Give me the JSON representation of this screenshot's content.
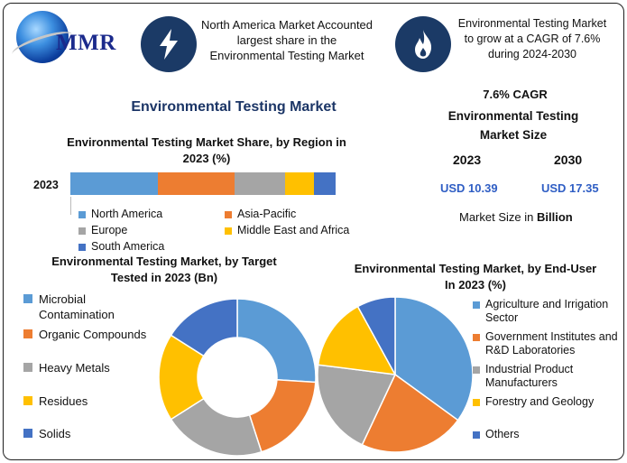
{
  "brand": {
    "name": "MMR"
  },
  "header": {
    "info_left": "North America Market Accounted largest share in the Environmental Testing Market",
    "info_right": "Environmental Testing Market to grow at a CAGR of 7.6% during 2024-2030",
    "icon_left": "lightning-icon",
    "icon_right": "flame-icon"
  },
  "main_title": "Environmental Testing Market",
  "market_size": {
    "cagr": "7.6% CAGR",
    "title": "Environmental Testing Market Size",
    "year_a": "2023",
    "year_b": "2030",
    "value_a": "USD 10.39",
    "value_b": "USD 17.35",
    "unit_prefix": "Market Size in",
    "unit_bold": "Billion"
  },
  "colors": {
    "blue": "#5b9bd5",
    "orange": "#ed7d31",
    "gray": "#a5a5a5",
    "gold": "#ffc000",
    "darkblue": "#4472c4",
    "value_blue": "#2f5ec4",
    "badge": "#1b3a66"
  },
  "chart_data": [
    {
      "type": "bar",
      "orientation": "horizontal-stacked",
      "title": "Environmental Testing Market Share, by Region in 2023 (%)",
      "categories": [
        "2023"
      ],
      "series": [
        {
          "name": "North America",
          "values": [
            33
          ],
          "color": "#5b9bd5"
        },
        {
          "name": "Asia-Pacific",
          "values": [
            29
          ],
          "color": "#ed7d31"
        },
        {
          "name": "Europe",
          "values": [
            19
          ],
          "color": "#a5a5a5"
        },
        {
          "name": "Middle East and Africa",
          "values": [
            11
          ],
          "color": "#ffc000"
        },
        {
          "name": "South America",
          "values": [
            8
          ],
          "color": "#4472c4"
        }
      ],
      "legend": "bottom"
    },
    {
      "type": "pie",
      "variant": "donut",
      "title": "Environmental Testing Market, by Target Tested in 2023 (Bn)",
      "categories": [
        "Microbial Contamination",
        "Organic Compounds",
        "Heavy Metals",
        "Residues",
        "Solids"
      ],
      "values": [
        26,
        19,
        21,
        18,
        16
      ],
      "colors": [
        "#5b9bd5",
        "#ed7d31",
        "#a5a5a5",
        "#ffc000",
        "#4472c4"
      ],
      "legend": "left"
    },
    {
      "type": "pie",
      "title": "Environmental Testing Market, by End-User In 2023 (%)",
      "categories": [
        "Agriculture and Irrigation Sector",
        "Government Institutes and R&D Laboratories",
        "Industrial Product Manufacturers",
        "Forestry and Geology",
        "Others"
      ],
      "values": [
        35,
        22,
        20,
        15,
        8
      ],
      "colors": [
        "#5b9bd5",
        "#ed7d31",
        "#a5a5a5",
        "#ffc000",
        "#4472c4"
      ],
      "legend": "right"
    }
  ]
}
